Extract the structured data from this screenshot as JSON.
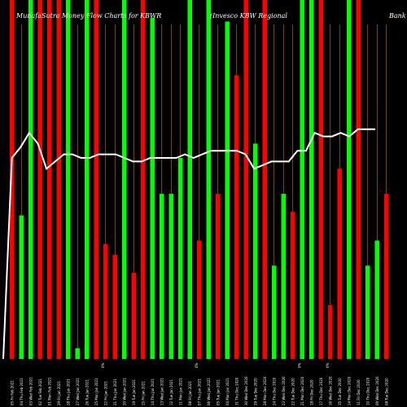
{
  "chart_data": {
    "type": "bar",
    "title": "MunafaSutra Money Flow Charts for KBWR",
    "subtitle": "(Invesco KBW Regional",
    "title_right": "Bank",
    "categories": [
      "05 Fri Feb 2021",
      "04 Thu Feb 2021",
      "03 Wed Feb 2021",
      "02 Tue Feb 2021",
      "01 Mon Feb 2021",
      "29 Fri Jan 2021",
      "28 Thu Jan 2021",
      "27 Wed Jan 2021",
      "26 Tue Jan 2021",
      "25 Mon Jan 2021",
      "22 Fri Jan 2021",
      "21 Thu Jan 2021",
      "20 Wed Jan 2021",
      "19 Tue Jan 2021",
      "15 Fri Jan 2021",
      "14 Thu Jan 2021",
      "13 Wed Jan 2021",
      "12 Tue Jan 2021",
      "11 Mon Jan 2021",
      "08 Fri Jan 2021",
      "07 Thu Jan 2021",
      "06 Wed Jan 2021",
      "05 Tue Jan 2021",
      "04 Mon Jan 2021",
      "31 Thu Dec 2020",
      "30 Wed Dec 2020",
      "29 Tue Dec 2020",
      "28 Mon Dec 2020",
      "24 Thu Dec 2020",
      "23 Wed Dec 2020",
      "22 Tue Dec 2020",
      "21 Mon Dec 2020",
      "18 Fri Dec 2020",
      "17 Thu Dec 2020",
      "16 Wed Dec 2020",
      "15 Tue Dec 2020",
      "14 Mon Dec 2020",
      "11 Fri Dec 2020",
      "10 Thu Dec 2020",
      "09 Wed Dec 2020",
      "08 Tue Dec 2020"
    ],
    "mid_tick_label": "0%",
    "bars": [
      {
        "dir": "down",
        "h": 1.0
      },
      {
        "dir": "up",
        "h": 0.4
      },
      {
        "dir": "up",
        "h": 1.0
      },
      {
        "dir": "down",
        "h": 1.0
      },
      {
        "dir": "down",
        "h": 1.0
      },
      {
        "dir": "down",
        "h": 1.0
      },
      {
        "dir": "up",
        "h": 1.0
      },
      {
        "dir": "up",
        "h": 0.03
      },
      {
        "dir": "up",
        "h": 1.0
      },
      {
        "dir": "down",
        "h": 1.0
      },
      {
        "dir": "down",
        "h": 0.32
      },
      {
        "dir": "down",
        "h": 0.29
      },
      {
        "dir": "up",
        "h": 1.0
      },
      {
        "dir": "down",
        "h": 0.24
      },
      {
        "dir": "down",
        "h": 1.0
      },
      {
        "dir": "up",
        "h": 0.95
      },
      {
        "dir": "up",
        "h": 0.46
      },
      {
        "dir": "up",
        "h": 0.46
      },
      {
        "dir": "up",
        "h": 0.56
      },
      {
        "dir": "up",
        "h": 1.0
      },
      {
        "dir": "down",
        "h": 0.33
      },
      {
        "dir": "up",
        "h": 1.0
      },
      {
        "dir": "down",
        "h": 0.46
      },
      {
        "dir": "up",
        "h": 0.94
      },
      {
        "dir": "down",
        "h": 0.79
      },
      {
        "dir": "down",
        "h": 1.0
      },
      {
        "dir": "up",
        "h": 0.6
      },
      {
        "dir": "down",
        "h": 1.0
      },
      {
        "dir": "up",
        "h": 0.26
      },
      {
        "dir": "up",
        "h": 0.46
      },
      {
        "dir": "down",
        "h": 0.41
      },
      {
        "dir": "up",
        "h": 1.0
      },
      {
        "dir": "up",
        "h": 1.0
      },
      {
        "dir": "down",
        "h": 1.0
      },
      {
        "dir": "down",
        "h": 0.15
      },
      {
        "dir": "down",
        "h": 0.53
      },
      {
        "dir": "up",
        "h": 1.0
      },
      {
        "dir": "down",
        "h": 1.0
      },
      {
        "dir": "up",
        "h": 0.26
      },
      {
        "dir": "up",
        "h": 0.33
      },
      {
        "dir": "down",
        "h": 0.46
      }
    ],
    "price_line": [
      0.0,
      0.56,
      0.59,
      0.63,
      0.6,
      0.53,
      0.55,
      0.57,
      0.57,
      0.56,
      0.56,
      0.57,
      0.57,
      0.57,
      0.56,
      0.55,
      0.55,
      0.56,
      0.56,
      0.56,
      0.56,
      0.57,
      0.56,
      0.57,
      0.58,
      0.58,
      0.58,
      0.58,
      0.57,
      0.53,
      0.54,
      0.55,
      0.55,
      0.55,
      0.58,
      0.58,
      0.63,
      0.62,
      0.62,
      0.63,
      0.62,
      0.64,
      0.64,
      0.64
    ],
    "colors": {
      "up": "#00ff00",
      "down": "#ff0000",
      "line": "#ffffff",
      "background": "#000000",
      "gridline": "#cc7a00"
    },
    "grid": true
  }
}
